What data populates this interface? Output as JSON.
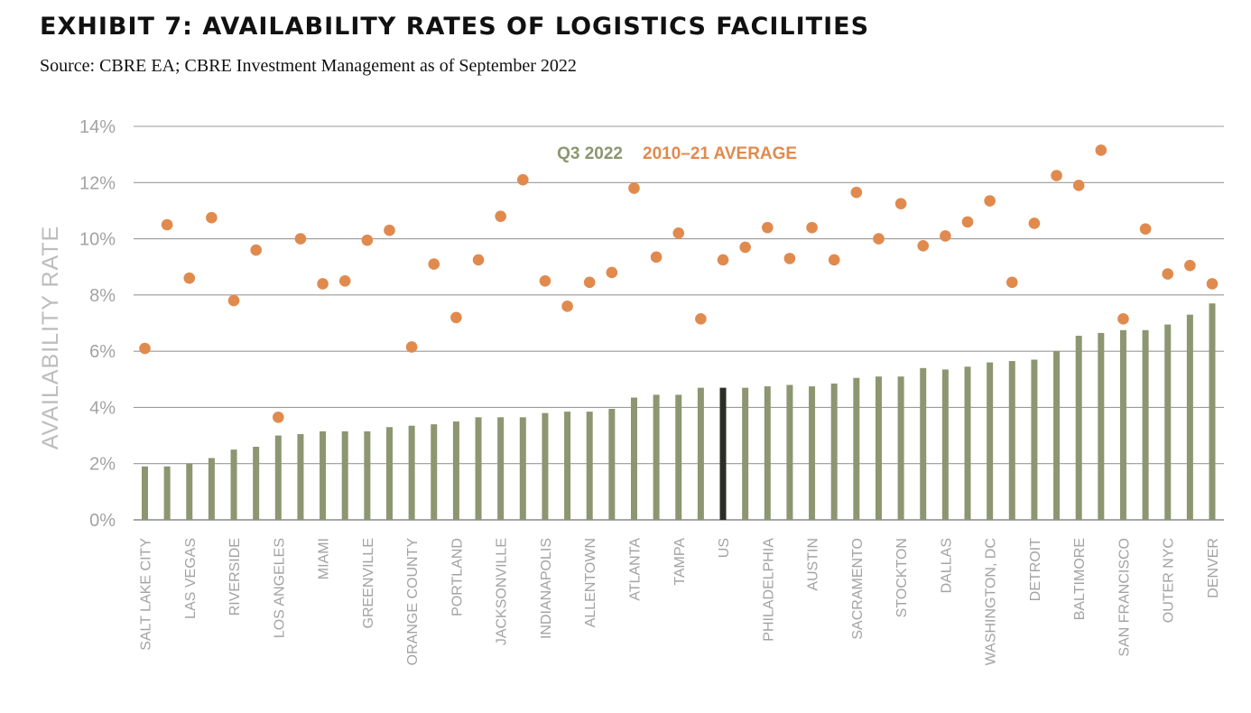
{
  "title": "EXHIBIT 7: AVAILABILITY RATES OF LOGISTICS FACILITIES",
  "subtitle": "Source: CBRE EA; CBRE Investment Management as of September 2022",
  "chart_data": {
    "type": "bar",
    "ylabel": "AVAILABILITY RATE",
    "xlabel": "",
    "ylim": [
      0,
      14
    ],
    "yticks": [
      "0%",
      "2%",
      "4%",
      "6%",
      "8%",
      "10%",
      "12%",
      "14%"
    ],
    "grid": true,
    "legend_position": "top-center",
    "colors": {
      "q3_2022": "#8c9670",
      "average": "#e08a4e",
      "us_bar": "#2b2e25"
    },
    "categories": [
      "SALT LAKE CITY",
      "",
      "LAS VEGAS",
      "",
      "RIVERSIDE",
      "",
      "LOS ANGELES",
      "",
      "MIAMI",
      "",
      "GREENVILLE",
      "",
      "ORANGE COUNTY",
      "",
      "PORTLAND",
      "",
      "JACKSONVILLE",
      "",
      "INDIANAPOLIS",
      "",
      "ALLENTOWN",
      "",
      "ATLANTA",
      "",
      "TAMPA",
      "",
      "US",
      "",
      "PHILADELPHIA",
      "",
      "AUSTIN",
      "",
      "SACRAMENTO",
      "",
      "STOCKTON",
      "",
      "DALLAS",
      "",
      "WASHINGTON, DC",
      "",
      "DETROIT",
      "",
      "BALTIMORE",
      "",
      "SAN FRANCISCO",
      "",
      "OUTER NYC",
      "",
      "DENVER"
    ],
    "highlight_category": "US",
    "series": [
      {
        "name": "Q3 2022",
        "kind": "bar",
        "values": [
          1.9,
          1.9,
          2.0,
          2.2,
          2.5,
          2.6,
          3.0,
          3.05,
          3.15,
          3.15,
          3.15,
          3.3,
          3.35,
          3.4,
          3.5,
          3.65,
          3.65,
          3.65,
          3.8,
          3.85,
          3.85,
          3.95,
          4.35,
          4.45,
          4.45,
          4.7,
          4.7,
          4.7,
          4.75,
          4.8,
          4.75,
          4.85,
          5.05,
          5.1,
          5.1,
          5.4,
          5.35,
          5.45,
          5.6,
          5.65,
          5.7,
          6.0,
          6.55,
          6.65,
          6.75,
          6.75,
          6.95,
          7.3,
          7.7
        ]
      },
      {
        "name": "2010–21 AVERAGE",
        "kind": "dot",
        "values": [
          6.1,
          10.5,
          8.6,
          10.75,
          7.8,
          9.6,
          3.65,
          10.0,
          8.4,
          8.5,
          9.95,
          10.3,
          6.15,
          9.1,
          7.2,
          9.25,
          10.8,
          12.1,
          8.5,
          7.6,
          8.45,
          8.8,
          11.8,
          9.35,
          10.2,
          7.15,
          9.25,
          9.7,
          10.4,
          9.3,
          10.4,
          9.25,
          11.65,
          10.0,
          11.25,
          9.75,
          10.1,
          10.6,
          11.35,
          8.45,
          10.55,
          12.25,
          11.9,
          13.15,
          7.15,
          10.35,
          8.75,
          9.05,
          8.4
        ]
      }
    ]
  }
}
